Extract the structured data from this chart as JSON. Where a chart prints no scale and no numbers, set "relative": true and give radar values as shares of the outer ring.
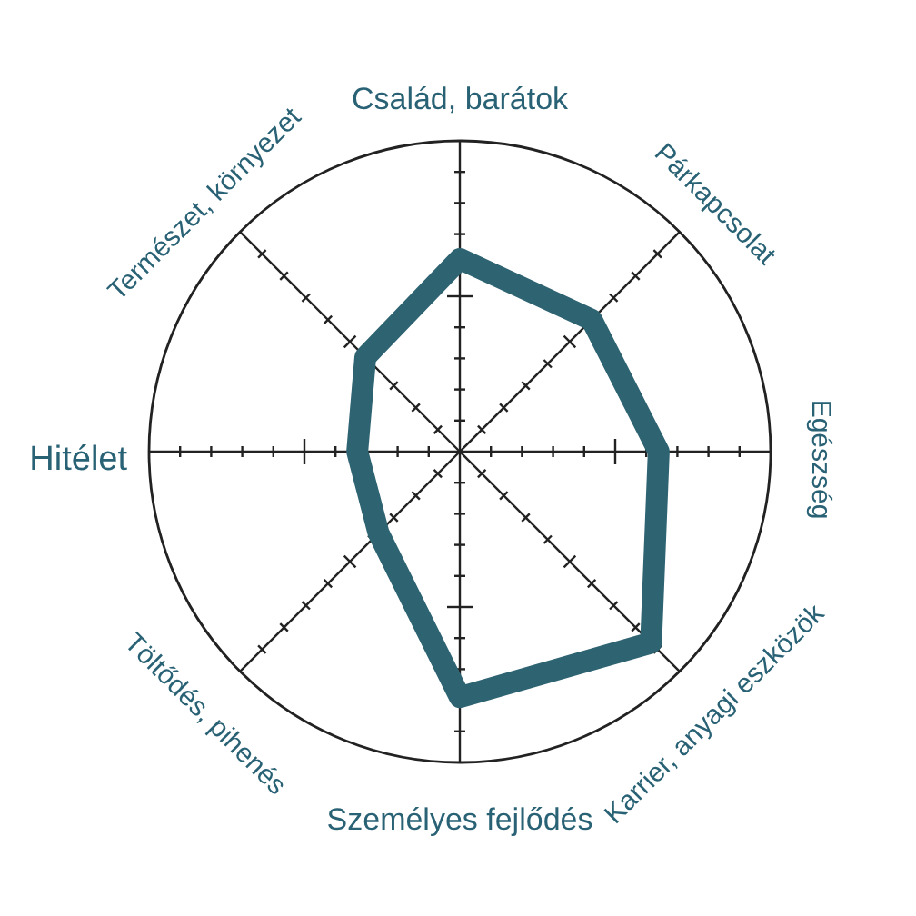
{
  "chart_data": {
    "type": "radar",
    "relative": true,
    "grid": true,
    "categories": [
      "Család, barátok",
      "Párkapcsolat",
      "Egészség",
      "Karrier, anyagi eszközök",
      "Személyes fejlődés",
      "Töltődés, pihenés",
      "Hitélet",
      "Természet, környezet"
    ],
    "series": [
      {
        "color": "#2e6372",
        "values": [
          0.62,
          0.6,
          0.64,
          0.87,
          0.79,
          0.37,
          0.33,
          0.43
        ]
      }
    ]
  }
}
